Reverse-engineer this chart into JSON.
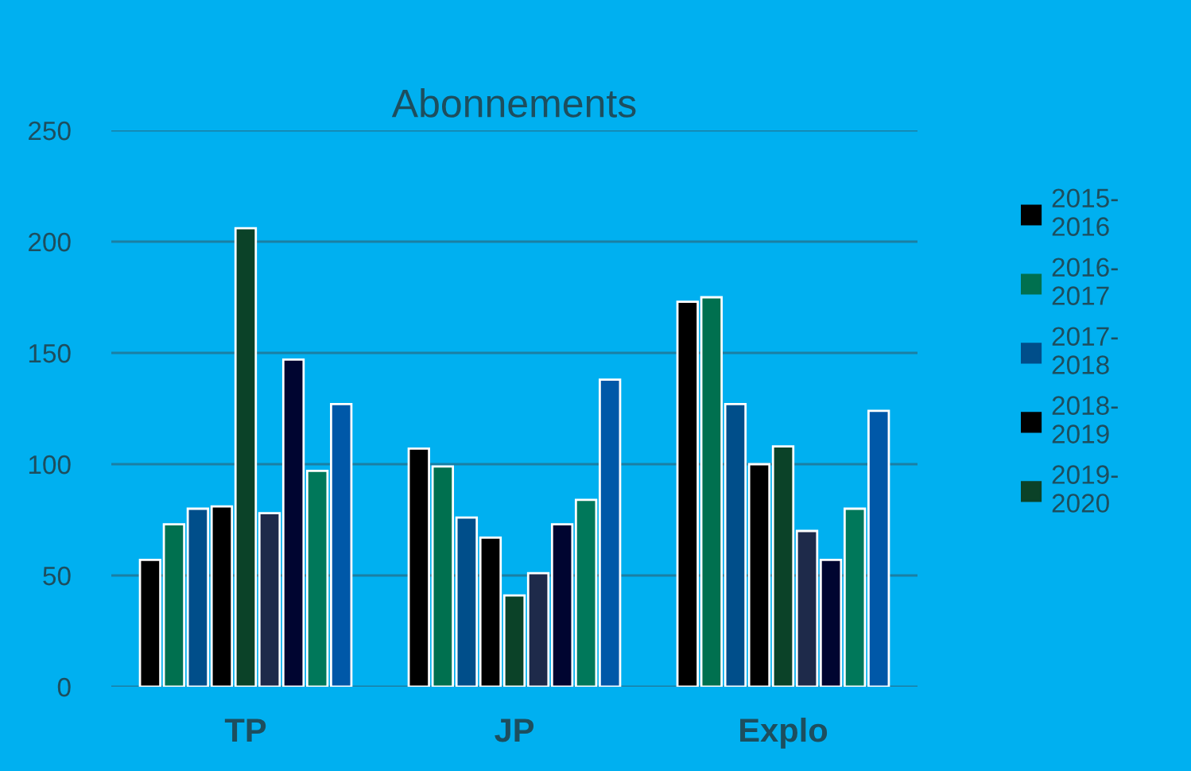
{
  "chart_data": {
    "type": "bar",
    "title": "Abonnements",
    "categories": [
      "TP",
      "JP",
      "Explo"
    ],
    "series": [
      {
        "name": "2015-2016",
        "color": "#000000",
        "values": [
          57,
          107,
          173
        ]
      },
      {
        "name": "2016-2017",
        "color": "#00704f",
        "values": [
          73,
          99,
          175
        ]
      },
      {
        "name": "2017-2018",
        "color": "#004e8a",
        "values": [
          80,
          76,
          127
        ]
      },
      {
        "name": "2018-2019",
        "color": "#000000",
        "values": [
          81,
          67,
          100
        ]
      },
      {
        "name": "2019-2020",
        "color": "#0b4228",
        "values": [
          206,
          41,
          108
        ]
      },
      {
        "color": "#1e2a4a",
        "values": [
          78,
          51,
          70
        ]
      },
      {
        "color": "#000530",
        "values": [
          147,
          73,
          57
        ]
      },
      {
        "color": "#00785a",
        "values": [
          97,
          84,
          80
        ]
      },
      {
        "color": "#0058a8",
        "values": [
          127,
          138,
          124
        ]
      }
    ],
    "ylim": [
      0,
      250
    ],
    "yticks": [
      0,
      50,
      100,
      150,
      200,
      250
    ],
    "grid": "y",
    "legend": "right"
  }
}
